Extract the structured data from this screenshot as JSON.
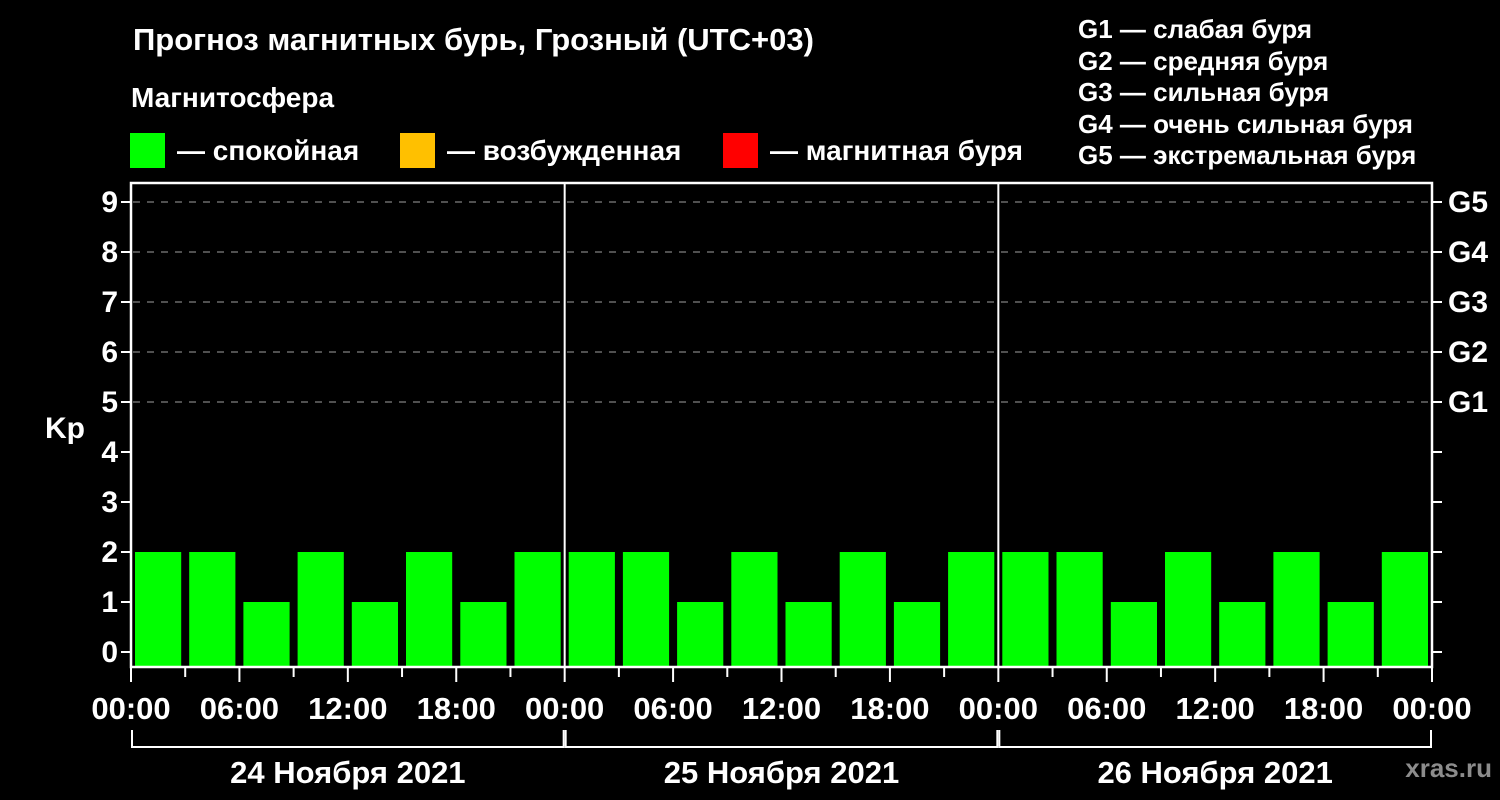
{
  "header": {
    "title": "Прогноз магнитных бурь, Грозный (UTC+03)",
    "subtitle": "Магнитосфера",
    "legend": [
      {
        "name": "quiet",
        "label": "— спокойная",
        "color": "#00ff00"
      },
      {
        "name": "excited",
        "label": "— возбужденная",
        "color": "#ffc000"
      },
      {
        "name": "storm",
        "label": "— магнитная буря",
        "color": "#ff0000"
      }
    ],
    "storm_scale": [
      "G1 — слабая буря",
      "G2 — средняя буря",
      "G3 — сильная буря",
      "G4 — очень сильная буря",
      "G5 — экстремальная буря"
    ]
  },
  "watermark": "xras.ru",
  "chart_data": {
    "type": "bar",
    "ylabel": "Kp",
    "ylim": [
      0,
      9
    ],
    "yticks": [
      0,
      1,
      2,
      3,
      4,
      5,
      6,
      7,
      8,
      9
    ],
    "grid_levels": [
      5,
      6,
      7,
      8,
      9
    ],
    "grid": "dashed-horizontal-at-storm-levels",
    "right_axis": [
      {
        "kp": 5,
        "label": "G1"
      },
      {
        "kp": 6,
        "label": "G2"
      },
      {
        "kp": 7,
        "label": "G3"
      },
      {
        "kp": 8,
        "label": "G4"
      },
      {
        "kp": 9,
        "label": "G5"
      }
    ],
    "hours_per_bar": 3,
    "x_tick_interval_hours": 3,
    "x_label_interval_hours": 6,
    "x_labels_cycle": [
      "00:00",
      "06:00",
      "12:00",
      "18:00"
    ],
    "days": [
      {
        "date": "24 Ноября 2021",
        "values": [
          2,
          2,
          1,
          2,
          1,
          2,
          1,
          2
        ]
      },
      {
        "date": "25 Ноября 2021",
        "values": [
          2,
          2,
          1,
          2,
          1,
          2,
          1,
          2
        ]
      },
      {
        "date": "26 Ноября 2021",
        "values": [
          2,
          2,
          1,
          2,
          1,
          2,
          1,
          2
        ]
      }
    ],
    "colors": {
      "quiet": "#00ff00",
      "excited": "#ffc000",
      "storm": "#ff0000"
    },
    "color_rule": {
      "quiet_below": 4,
      "storm_from": 5
    },
    "legend_position": "top"
  }
}
